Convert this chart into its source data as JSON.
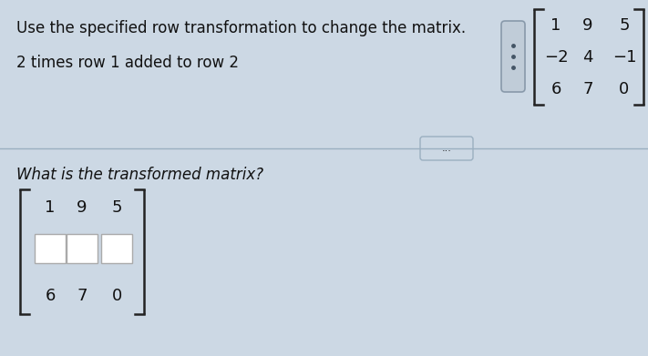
{
  "bg_color": "#ccd8e4",
  "top_text1": "Use the specified row transformation to change the matrix.",
  "top_text2": "2 times row 1 added to row 2",
  "matrix_orig": [
    [
      "1",
      "9",
      "5"
    ],
    [
      "−2",
      "4",
      "−1"
    ],
    [
      "6",
      "7",
      "0"
    ]
  ],
  "divider_dots": "...",
  "question_text": "What is the transformed matrix?",
  "matrix_ans_row1": [
    "1",
    "9",
    "5"
  ],
  "matrix_ans_row3": [
    "6",
    "7",
    "0"
  ],
  "font_size_main": 12,
  "font_size_matrix": 13,
  "text_color": "#111111",
  "bracket_color": "#222222",
  "box_edge_color": "#aaaaaa"
}
